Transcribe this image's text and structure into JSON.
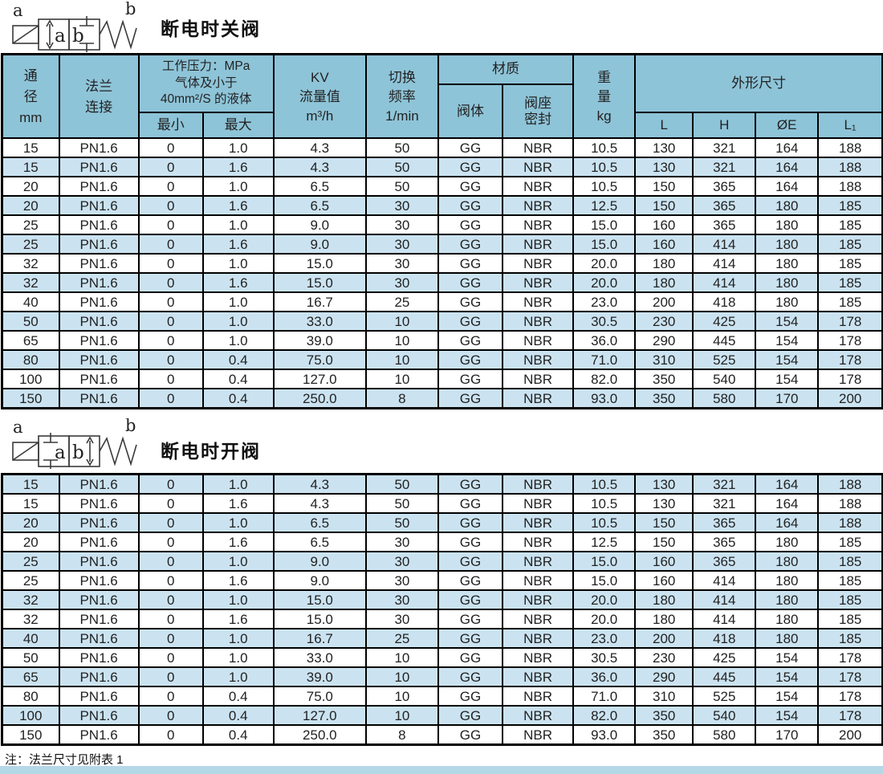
{
  "titles": {
    "section1": "断电时关阀",
    "section2": "断电时开阀"
  },
  "symbols": {
    "diagram1": {
      "left_label": "a",
      "right_label": "b",
      "box1_letter": "a",
      "box2_letter": "b"
    },
    "diagram2": {
      "left_label": "a",
      "right_label": "b",
      "box1_letter": "a",
      "box2_letter": "b"
    }
  },
  "header": {
    "diameter": [
      "通",
      "径",
      "mm"
    ],
    "flange": [
      "法兰",
      "连接"
    ],
    "pressure_title": [
      "工作压力：MPa",
      "气体及小于",
      "40mm²/S 的液体"
    ],
    "pressure_min": "最小",
    "pressure_max": "最大",
    "kv": [
      "KV",
      "流量值",
      "m³/h"
    ],
    "freq": [
      "切换",
      "频率",
      "1/min"
    ],
    "material": "材质",
    "material_body": "阀体",
    "material_seal": [
      "阀座",
      "密封"
    ],
    "weight": [
      "重",
      "量",
      "kg"
    ],
    "dims": "外形尺寸",
    "dims_L": "L",
    "dims_H": "H",
    "dims_E": "ØE",
    "dims_L1": "L₁"
  },
  "table1": {
    "rows": [
      [
        "15",
        "PN1.6",
        "0",
        "1.0",
        "4.3",
        "50",
        "GG",
        "NBR",
        "10.5",
        "130",
        "321",
        "164",
        "188"
      ],
      [
        "15",
        "PN1.6",
        "0",
        "1.6",
        "4.3",
        "50",
        "GG",
        "NBR",
        "10.5",
        "130",
        "321",
        "164",
        "188"
      ],
      [
        "20",
        "PN1.6",
        "0",
        "1.0",
        "6.5",
        "50",
        "GG",
        "NBR",
        "10.5",
        "150",
        "365",
        "164",
        "188"
      ],
      [
        "20",
        "PN1.6",
        "0",
        "1.6",
        "6.5",
        "30",
        "GG",
        "NBR",
        "12.5",
        "150",
        "365",
        "180",
        "185"
      ],
      [
        "25",
        "PN1.6",
        "0",
        "1.0",
        "9.0",
        "30",
        "GG",
        "NBR",
        "15.0",
        "160",
        "365",
        "180",
        "185"
      ],
      [
        "25",
        "PN1.6",
        "0",
        "1.6",
        "9.0",
        "30",
        "GG",
        "NBR",
        "15.0",
        "160",
        "414",
        "180",
        "185"
      ],
      [
        "32",
        "PN1.6",
        "0",
        "1.0",
        "15.0",
        "30",
        "GG",
        "NBR",
        "20.0",
        "180",
        "414",
        "180",
        "185"
      ],
      [
        "32",
        "PN1.6",
        "0",
        "1.6",
        "15.0",
        "30",
        "GG",
        "NBR",
        "20.0",
        "180",
        "414",
        "180",
        "185"
      ],
      [
        "40",
        "PN1.6",
        "0",
        "1.0",
        "16.7",
        "25",
        "GG",
        "NBR",
        "23.0",
        "200",
        "418",
        "180",
        "185"
      ],
      [
        "50",
        "PN1.6",
        "0",
        "1.0",
        "33.0",
        "10",
        "GG",
        "NBR",
        "30.5",
        "230",
        "425",
        "154",
        "178"
      ],
      [
        "65",
        "PN1.6",
        "0",
        "1.0",
        "39.0",
        "10",
        "GG",
        "NBR",
        "36.0",
        "290",
        "445",
        "154",
        "178"
      ],
      [
        "80",
        "PN1.6",
        "0",
        "0.4",
        "75.0",
        "10",
        "GG",
        "NBR",
        "71.0",
        "310",
        "525",
        "154",
        "178"
      ],
      [
        "100",
        "PN1.6",
        "0",
        "0.4",
        "127.0",
        "10",
        "GG",
        "NBR",
        "82.0",
        "350",
        "540",
        "154",
        "178"
      ],
      [
        "150",
        "PN1.6",
        "0",
        "0.4",
        "250.0",
        "8",
        "GG",
        "NBR",
        "93.0",
        "350",
        "580",
        "170",
        "200"
      ]
    ]
  },
  "table2": {
    "rows": [
      [
        "15",
        "PN1.6",
        "0",
        "1.0",
        "4.3",
        "50",
        "GG",
        "NBR",
        "10.5",
        "130",
        "321",
        "164",
        "188"
      ],
      [
        "15",
        "PN1.6",
        "0",
        "1.6",
        "4.3",
        "50",
        "GG",
        "NBR",
        "10.5",
        "130",
        "321",
        "164",
        "188"
      ],
      [
        "20",
        "PN1.6",
        "0",
        "1.0",
        "6.5",
        "50",
        "GG",
        "NBR",
        "10.5",
        "150",
        "365",
        "164",
        "188"
      ],
      [
        "20",
        "PN1.6",
        "0",
        "1.6",
        "6.5",
        "30",
        "GG",
        "NBR",
        "12.5",
        "150",
        "365",
        "180",
        "185"
      ],
      [
        "25",
        "PN1.6",
        "0",
        "1.0",
        "9.0",
        "30",
        "GG",
        "NBR",
        "15.0",
        "160",
        "365",
        "180",
        "185"
      ],
      [
        "25",
        "PN1.6",
        "0",
        "1.6",
        "9.0",
        "30",
        "GG",
        "NBR",
        "15.0",
        "160",
        "414",
        "180",
        "185"
      ],
      [
        "32",
        "PN1.6",
        "0",
        "1.0",
        "15.0",
        "30",
        "GG",
        "NBR",
        "20.0",
        "180",
        "414",
        "180",
        "185"
      ],
      [
        "32",
        "PN1.6",
        "0",
        "1.6",
        "15.0",
        "30",
        "GG",
        "NBR",
        "20.0",
        "180",
        "414",
        "180",
        "185"
      ],
      [
        "40",
        "PN1.6",
        "0",
        "1.0",
        "16.7",
        "25",
        "GG",
        "NBR",
        "23.0",
        "200",
        "418",
        "180",
        "185"
      ],
      [
        "50",
        "PN1.6",
        "0",
        "1.0",
        "33.0",
        "10",
        "GG",
        "NBR",
        "30.5",
        "230",
        "425",
        "154",
        "178"
      ],
      [
        "65",
        "PN1.6",
        "0",
        "1.0",
        "39.0",
        "10",
        "GG",
        "NBR",
        "36.0",
        "290",
        "445",
        "154",
        "178"
      ],
      [
        "80",
        "PN1.6",
        "0",
        "0.4",
        "75.0",
        "10",
        "GG",
        "NBR",
        "71.0",
        "310",
        "525",
        "154",
        "178"
      ],
      [
        "100",
        "PN1.6",
        "0",
        "0.4",
        "127.0",
        "10",
        "GG",
        "NBR",
        "82.0",
        "350",
        "540",
        "154",
        "178"
      ],
      [
        "150",
        "PN1.6",
        "0",
        "0.4",
        "250.0",
        "8",
        "GG",
        "NBR",
        "93.0",
        "350",
        "580",
        "170",
        "200"
      ]
    ]
  },
  "footnote": "注：法兰尺寸见附表 1",
  "colors": {
    "header_bg": "#8ec4d8",
    "row_alt_bg": "#cbe3f1",
    "row_bg": "#ffffff",
    "border": "#000000",
    "bottom_strip": "#b5d8e8"
  }
}
